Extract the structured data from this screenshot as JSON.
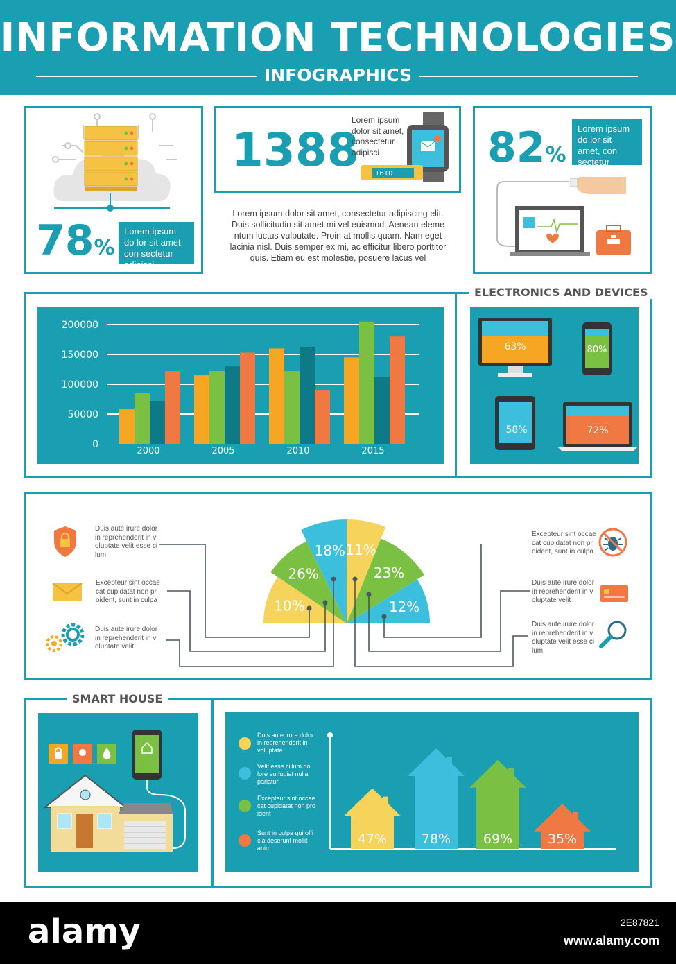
{
  "header": {
    "title": "INFORMATION TECHNOLOGIES",
    "subtitle": "INFOGRAPHICS"
  },
  "stats": {
    "stat1": {
      "value": "78",
      "unit": "%",
      "text": "Lorem ipsum do lor sit amet, con sectetur adipisci"
    },
    "stat2": {
      "value": "1388",
      "text": "Lorem ipsum dolor sit amet, consectetur adipisci"
    },
    "stat3": {
      "value": "82",
      "unit": "%",
      "text": "Lorem ipsum do lor sit amet, con sectetur adipisci"
    },
    "paragraph": "Lorem ipsum dolor sit amet, consectetur adipiscing elit. Duis sollicitudin sit amet mi vel euismod. Aenean eleme ntum luctus vulputate. Proin at mollis quam. Nam eget lacinia nisl. Duis semper ex mi, ac efficitur libero porttitor quis. Etiam eu est molestie, posuere lacus vel",
    "watch_display": "1610"
  },
  "electronics": {
    "title": "ELECTRONICS AND DEVICES",
    "devices": [
      {
        "name": "Monitor",
        "value": "63%",
        "fill": 0.63,
        "color": "#f6a623"
      },
      {
        "name": "Phone",
        "value": "80%",
        "fill": 0.8,
        "color": "#7ac143"
      },
      {
        "name": "Tablet",
        "value": "58%",
        "fill": 0.58,
        "color": "#3bbfdc"
      },
      {
        "name": "Laptop",
        "value": "72%",
        "fill": 0.72,
        "color": "#f07842"
      }
    ]
  },
  "fan": {
    "left_items": [
      {
        "icon": "shield-lock-icon",
        "text": "Duis aute irure dolor in reprehenderit in v oluptate velit esse ci lum"
      },
      {
        "icon": "envelope-icon",
        "text": "Excepteur sint occae cat cupidatat non pr oident, sunt in culpa"
      },
      {
        "icon": "gears-icon",
        "text": "Duis aute irure dolor in reprehenderit in v oluptate velit"
      }
    ],
    "right_items": [
      {
        "icon": "bug-forbidden-icon",
        "text": "Excepteur sint occae cat cupidatat non pr oident, sunt in culpa"
      },
      {
        "icon": "credit-card-icon",
        "text": "Duis aute irure dolor in reprehenderit in v oluptate velit"
      },
      {
        "icon": "magnifier-icon",
        "text": "Duis aute irure dolor in reprehenderit in v oluptate velit esse ci lum"
      }
    ]
  },
  "smart_house": {
    "title": "SMART HOUSE",
    "legend": [
      {
        "color": "#f6d35a",
        "text": "Duis aute irure dolor in reprehenderit in voluptate"
      },
      {
        "color": "#3bbfdc",
        "text": "Velit esse cillum do lore eu fugiat nulla pariatur"
      },
      {
        "color": "#7ac143",
        "text": "Excepteur sint occae cat cupidatat non pro ident"
      },
      {
        "color": "#f07842",
        "text": "Sunt in culpa qui offi cia deserunt mollit anim"
      }
    ]
  },
  "chart_data": [
    {
      "type": "bar",
      "categories": [
        "2000",
        "2005",
        "2010",
        "2015"
      ],
      "series": [
        {
          "values": [
            58000,
            115000,
            160000,
            145000
          ],
          "color": "#f6a623"
        },
        {
          "values": [
            85000,
            122000,
            122000,
            205000
          ],
          "color": "#7ac143"
        },
        {
          "values": [
            72000,
            130000,
            163000,
            112000
          ],
          "color": "#0e7a88"
        },
        {
          "values": [
            122000,
            153000,
            90000,
            180000
          ],
          "color": "#f07842"
        }
      ],
      "yticks": [
        0,
        50000,
        100000,
        150000,
        200000
      ],
      "ylim": [
        0,
        210000
      ],
      "grid": true
    },
    {
      "type": "pie",
      "slices": [
        {
          "label": "10%",
          "value": 10,
          "color": "#f6d35a"
        },
        {
          "label": "26%",
          "value": 26,
          "color": "#7ac143"
        },
        {
          "label": "18%",
          "value": 18,
          "color": "#3bbfdc"
        },
        {
          "label": "11%",
          "value": 11,
          "color": "#f6d35a"
        },
        {
          "label": "23%",
          "value": 23,
          "color": "#7ac143"
        },
        {
          "label": "12%",
          "value": 12,
          "color": "#3bbfdc"
        }
      ]
    },
    {
      "type": "bar",
      "categories": [
        "47%",
        "78%",
        "69%",
        "35%"
      ],
      "values": [
        47,
        78,
        69,
        35
      ],
      "colors": [
        "#f6d35a",
        "#3bbfdc",
        "#7ac143",
        "#f07842"
      ]
    }
  ],
  "footer": {
    "brand": "alamy",
    "image_id": "2E87821",
    "url": "www.alamy.com"
  }
}
